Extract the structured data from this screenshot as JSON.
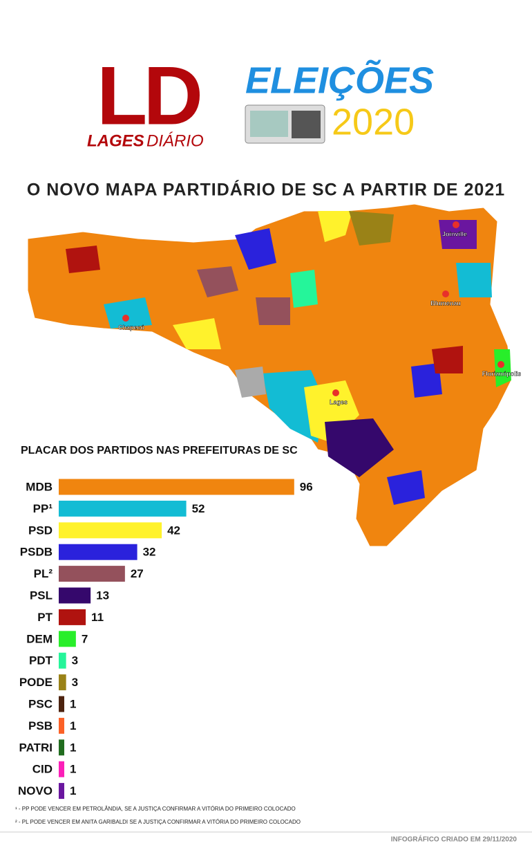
{
  "header": {
    "logo": "LD",
    "logo_name_bold": "LAGES",
    "logo_name_light": "DIÁRIO",
    "event": "ELEIÇÕES",
    "year": "2020"
  },
  "title": "O NOVO MAPA PARTIDÁRIO DE SC A PARTIR DE 2021",
  "map": {
    "cities": [
      "Joinville",
      "Blumenau",
      "Chapecó",
      "Lages",
      "Florianópolis"
    ]
  },
  "chart_data": {
    "type": "bar",
    "orientation": "horizontal",
    "title": "PLACAR DOS PARTIDOS NAS PREFEITURAS DE SC",
    "categories": [
      "MDB",
      "PP¹",
      "PSD",
      "PSDB",
      "PL²",
      "PSL",
      "PT",
      "DEM",
      "PDT",
      "PODE",
      "PSC",
      "PSB",
      "PATRI",
      "CID",
      "NOVO"
    ],
    "values": [
      96,
      52,
      42,
      32,
      27,
      13,
      11,
      7,
      3,
      3,
      1,
      1,
      1,
      1,
      1
    ],
    "colors": [
      "#f0850f",
      "#13bcd4",
      "#fff22c",
      "#2a22dc",
      "#94515c",
      "#35086c",
      "#b0130f",
      "#28ee2a",
      "#25f59a",
      "#9a8217",
      "#4d230f",
      "#fb6127",
      "#216d1f",
      "#fb1fb8",
      "#6a169f"
    ]
  },
  "footnotes": [
    "¹ - PP PODE VENCER EM PETROLÂNDIA, SE A JUSTIÇA CONFIRMAR A VITÓRIA DO PRIMEIRO COLOCADO",
    "² - PL PODE VENCER EM ANITA GARIBALDI SE A JUSTIÇA CONFIRMAR A VITÓRIA DO PRIMEIRO COLOCADO"
  ],
  "credit": "INFOGRÁFICO CRIADO EM 29/11/2020"
}
